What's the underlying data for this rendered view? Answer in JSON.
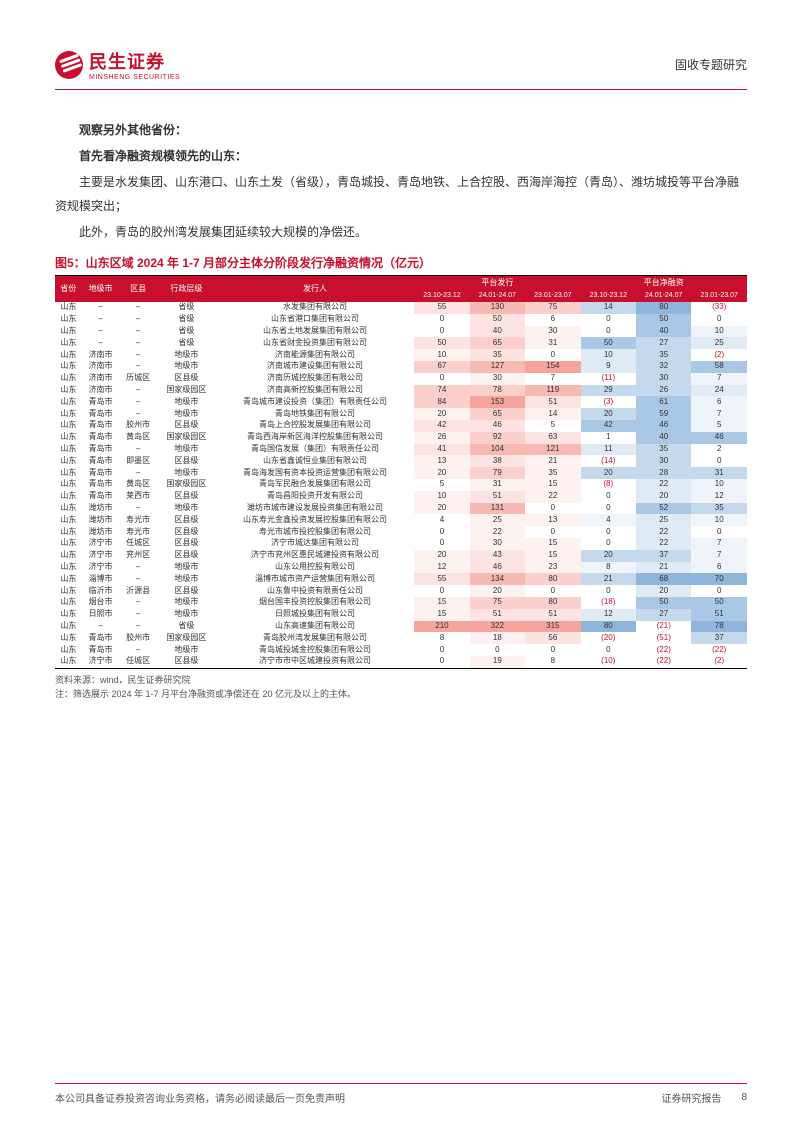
{
  "header": {
    "logo_cn": "民生证券",
    "logo_en": "MINSHENG SECURITIES",
    "right": "固收专题研究"
  },
  "body": {
    "p1": "观察另外其他省份：",
    "p2": "首先看净融资规模领先的山东：",
    "p3": "主要是水发集团、山东港口、山东土发（省级），青岛城投、青岛地铁、上合控股、西海岸海控（青岛）、潍坊城投等平台净融资规模突出；",
    "p4": "此外，青岛的胶州湾发展集团延续较大规模的净偿还。"
  },
  "table": {
    "title": "图5：山东区域 2024 年 1-7 月部分主体分阶段发行净融资情况（亿元）",
    "header_top": {
      "c1": "省份",
      "c2": "地级市",
      "c3": "区县",
      "c4": "行政层级",
      "c5": "发行人",
      "g1": "平台发行",
      "g2": "平台净融资"
    },
    "header_sub": {
      "s1": "23.10-23.12",
      "s2": "24.01-24.07",
      "s3": "23.01-23.07",
      "s4": "23.10-23.12",
      "s5": "24.01-24.07",
      "s6": "23.01-23.07"
    },
    "colors": {
      "red5": "#f7a49c",
      "red4": "#f9b9b3",
      "red3": "#fbcfcb",
      "red2": "#fde4e2",
      "red1": "#fef2f1",
      "blue5": "#8fb5dd",
      "blue4": "#aac7e5",
      "blue3": "#c5d9ed",
      "blue2": "#dfeaf5",
      "blue1": "#eff4fa",
      "white": "#ffffff",
      "neg": "#c8102e"
    },
    "rows": [
      {
        "p": "山东",
        "c": "–",
        "d": "–",
        "l": "省级",
        "i": "水发集团有限公司",
        "v": [
          55,
          130,
          75,
          14,
          80,
          "(33)"
        ],
        "bg": [
          "red2",
          "red4",
          "red3",
          "blue3",
          "blue5",
          "white"
        ],
        "nc": [
          0,
          0,
          0,
          0,
          0,
          1
        ]
      },
      {
        "p": "山东",
        "c": "–",
        "d": "–",
        "l": "省级",
        "i": "山东省港口集团有限公司",
        "v": [
          0,
          50,
          6,
          0,
          50,
          0
        ],
        "bg": [
          "white",
          "red2",
          "white",
          "white",
          "blue4",
          "white"
        ],
        "nc": [
          0,
          0,
          0,
          0,
          0,
          0
        ]
      },
      {
        "p": "山东",
        "c": "–",
        "d": "–",
        "l": "省级",
        "i": "山东省土地发展集团有限公司",
        "v": [
          0,
          40,
          30,
          0,
          40,
          10
        ],
        "bg": [
          "white",
          "red2",
          "red1",
          "white",
          "blue4",
          "blue1"
        ],
        "nc": [
          0,
          0,
          0,
          0,
          0,
          0
        ]
      },
      {
        "p": "山东",
        "c": "–",
        "d": "–",
        "l": "省级",
        "i": "山东省财金投资集团有限公司",
        "v": [
          50,
          65,
          31,
          50,
          27,
          25
        ],
        "bg": [
          "red2",
          "red3",
          "red1",
          "blue4",
          "blue3",
          "blue2"
        ],
        "nc": [
          0,
          0,
          0,
          0,
          0,
          0
        ]
      },
      {
        "p": "山东",
        "c": "济南市",
        "d": "–",
        "l": "地级市",
        "i": "济南能源集团有限公司",
        "v": [
          10,
          35,
          0,
          10,
          35,
          "(2)"
        ],
        "bg": [
          "red1",
          "red2",
          "white",
          "blue2",
          "blue3",
          "white"
        ],
        "nc": [
          0,
          0,
          0,
          0,
          0,
          1
        ]
      },
      {
        "p": "山东",
        "c": "济南市",
        "d": "–",
        "l": "地级市",
        "i": "济南城市建设集团有限公司",
        "v": [
          67,
          127,
          154,
          9,
          32,
          58
        ],
        "bg": [
          "red3",
          "red4",
          "red5",
          "blue2",
          "blue3",
          "blue4"
        ],
        "nc": [
          0,
          0,
          0,
          0,
          0,
          0
        ]
      },
      {
        "p": "山东",
        "c": "济南市",
        "d": "历城区",
        "l": "区县级",
        "i": "济南历城控股集团有限公司",
        "v": [
          0,
          30,
          7,
          "(11)",
          30,
          7
        ],
        "bg": [
          "white",
          "red1",
          "white",
          "white",
          "blue3",
          "blue1"
        ],
        "nc": [
          0,
          0,
          0,
          1,
          0,
          0
        ]
      },
      {
        "p": "山东",
        "c": "济南市",
        "d": "–",
        "l": "国家级园区",
        "i": "济南高新控股集团有限公司",
        "v": [
          74,
          78,
          119,
          29,
          26,
          24
        ],
        "bg": [
          "red3",
          "red3",
          "red4",
          "blue3",
          "blue3",
          "blue2"
        ],
        "nc": [
          0,
          0,
          0,
          0,
          0,
          0
        ]
      },
      {
        "p": "山东",
        "c": "青岛市",
        "d": "–",
        "l": "地级市",
        "i": "青岛城市建设投资（集团）有限责任公司",
        "v": [
          84,
          153,
          51,
          "(3)",
          61,
          6
        ],
        "bg": [
          "red3",
          "red5",
          "red2",
          "white",
          "blue4",
          "blue1"
        ],
        "nc": [
          0,
          0,
          0,
          1,
          0,
          0
        ]
      },
      {
        "p": "山东",
        "c": "青岛市",
        "d": "–",
        "l": "地级市",
        "i": "青岛地铁集团有限公司",
        "v": [
          20,
          65,
          14,
          20,
          59,
          7
        ],
        "bg": [
          "red1",
          "red3",
          "red1",
          "blue3",
          "blue4",
          "blue1"
        ],
        "nc": [
          0,
          0,
          0,
          0,
          0,
          0
        ]
      },
      {
        "p": "山东",
        "c": "青岛市",
        "d": "胶州市",
        "l": "区县级",
        "i": "青岛上合控股发展集团有限公司",
        "v": [
          42,
          46,
          5,
          42,
          46,
          5
        ],
        "bg": [
          "red2",
          "red2",
          "white",
          "blue4",
          "blue4",
          "blue1"
        ],
        "nc": [
          0,
          0,
          0,
          0,
          0,
          0
        ]
      },
      {
        "p": "山东",
        "c": "青岛市",
        "d": "黄岛区",
        "l": "国家级园区",
        "i": "青岛西海岸新区海洋控股集团有限公司",
        "v": [
          26,
          92,
          63,
          1,
          40,
          46
        ],
        "bg": [
          "red1",
          "red3",
          "red2",
          "white",
          "blue4",
          "blue4"
        ],
        "nc": [
          0,
          0,
          0,
          0,
          0,
          0
        ]
      },
      {
        "p": "山东",
        "c": "青岛市",
        "d": "–",
        "l": "地级市",
        "i": "青岛国信发展（集团）有限责任公司",
        "v": [
          41,
          104,
          121,
          11,
          35,
          2
        ],
        "bg": [
          "red2",
          "red4",
          "red4",
          "blue2",
          "blue3",
          "white"
        ],
        "nc": [
          0,
          0,
          0,
          0,
          0,
          0
        ]
      },
      {
        "p": "山东",
        "c": "青岛市",
        "d": "即墨区",
        "l": "区县级",
        "i": "山东省鑫诚恒业集团有限公司",
        "v": [
          13,
          38,
          21,
          "(14)",
          30,
          0
        ],
        "bg": [
          "red1",
          "red2",
          "red1",
          "white",
          "blue3",
          "white"
        ],
        "nc": [
          0,
          0,
          0,
          1,
          0,
          0
        ]
      },
      {
        "p": "山东",
        "c": "青岛市",
        "d": "–",
        "l": "地级市",
        "i": "青岛海发国有资本投资运营集团有限公司",
        "v": [
          20,
          79,
          35,
          20,
          28,
          31
        ],
        "bg": [
          "red1",
          "red3",
          "red1",
          "blue3",
          "blue3",
          "blue3"
        ],
        "nc": [
          0,
          0,
          0,
          0,
          0,
          0
        ]
      },
      {
        "p": "山东",
        "c": "青岛市",
        "d": "黄岛区",
        "l": "国家级园区",
        "i": "青岛军民融合发展集团有限公司",
        "v": [
          5,
          31,
          15,
          "(8)",
          22,
          10
        ],
        "bg": [
          "white",
          "red1",
          "red1",
          "white",
          "blue2",
          "blue1"
        ],
        "nc": [
          0,
          0,
          0,
          1,
          0,
          0
        ]
      },
      {
        "p": "山东",
        "c": "青岛市",
        "d": "莱西市",
        "l": "区县级",
        "i": "青岛昌阳投资开发有限公司",
        "v": [
          10,
          51,
          22,
          0,
          20,
          12
        ],
        "bg": [
          "red1",
          "red2",
          "red1",
          "white",
          "blue2",
          "blue1"
        ],
        "nc": [
          0,
          0,
          0,
          0,
          0,
          0
        ]
      },
      {
        "p": "山东",
        "c": "潍坊市",
        "d": "–",
        "l": "地级市",
        "i": "潍坊市城市建设发展投资集团有限公司",
        "v": [
          20,
          131,
          0,
          0,
          52,
          35
        ],
        "bg": [
          "red1",
          "red4",
          "white",
          "white",
          "blue4",
          "blue3"
        ],
        "nc": [
          0,
          0,
          0,
          0,
          0,
          0
        ]
      },
      {
        "p": "山东",
        "c": "潍坊市",
        "d": "寿光市",
        "l": "区县级",
        "i": "山东寿光金鑫投资发展控股集团有限公司",
        "v": [
          4,
          25,
          13,
          4,
          25,
          10
        ],
        "bg": [
          "white",
          "red1",
          "red1",
          "blue1",
          "blue2",
          "blue1"
        ],
        "nc": [
          0,
          0,
          0,
          0,
          0,
          0
        ]
      },
      {
        "p": "山东",
        "c": "潍坊市",
        "d": "寿光市",
        "l": "区县级",
        "i": "寿光市城市投控股集团有限公司",
        "v": [
          0,
          22,
          0,
          0,
          22,
          0
        ],
        "bg": [
          "white",
          "red1",
          "white",
          "white",
          "blue2",
          "white"
        ],
        "nc": [
          0,
          0,
          0,
          0,
          0,
          0
        ]
      },
      {
        "p": "山东",
        "c": "济宁市",
        "d": "任城区",
        "l": "区县级",
        "i": "济宁市城达集团有限公司",
        "v": [
          0,
          30,
          15,
          0,
          22,
          7
        ],
        "bg": [
          "white",
          "red1",
          "red1",
          "white",
          "blue2",
          "blue1"
        ],
        "nc": [
          0,
          0,
          0,
          0,
          0,
          0
        ]
      },
      {
        "p": "山东",
        "c": "济宁市",
        "d": "兖州区",
        "l": "区县级",
        "i": "济宁市兖州区惠民城建投资有限公司",
        "v": [
          20,
          43,
          15,
          20,
          37,
          7
        ],
        "bg": [
          "red1",
          "red2",
          "red1",
          "blue3",
          "blue3",
          "blue1"
        ],
        "nc": [
          0,
          0,
          0,
          0,
          0,
          0
        ]
      },
      {
        "p": "山东",
        "c": "济宁市",
        "d": "–",
        "l": "地级市",
        "i": "山东公用控股有限公司",
        "v": [
          12,
          46,
          23,
          8,
          21,
          6
        ],
        "bg": [
          "red1",
          "red2",
          "red1",
          "blue1",
          "blue2",
          "blue1"
        ],
        "nc": [
          0,
          0,
          0,
          0,
          0,
          0
        ]
      },
      {
        "p": "山东",
        "c": "淄博市",
        "d": "–",
        "l": "地级市",
        "i": "淄博市城市资产运营集团有限公司",
        "v": [
          55,
          134,
          80,
          21,
          68,
          70
        ],
        "bg": [
          "red2",
          "red4",
          "red3",
          "blue3",
          "blue5",
          "blue5"
        ],
        "nc": [
          0,
          0,
          0,
          0,
          0,
          0
        ]
      },
      {
        "p": "山东",
        "c": "临沂市",
        "d": "沂源县",
        "l": "区县级",
        "i": "山东鲁中投资有限责任公司",
        "v": [
          0,
          20,
          0,
          0,
          20,
          0
        ],
        "bg": [
          "white",
          "red1",
          "white",
          "white",
          "blue2",
          "white"
        ],
        "nc": [
          0,
          0,
          0,
          0,
          0,
          0
        ]
      },
      {
        "p": "山东",
        "c": "烟台市",
        "d": "–",
        "l": "地级市",
        "i": "烟台国丰投资控股集团有限公司",
        "v": [
          15,
          75,
          80,
          "(18)",
          50,
          50
        ],
        "bg": [
          "red1",
          "red3",
          "red3",
          "white",
          "blue4",
          "blue4"
        ],
        "nc": [
          0,
          0,
          0,
          1,
          0,
          0
        ]
      },
      {
        "p": "山东",
        "c": "日照市",
        "d": "–",
        "l": "地级市",
        "i": "日照城投集团有限公司",
        "v": [
          15,
          51,
          51,
          12,
          27,
          51
        ],
        "bg": [
          "red1",
          "red2",
          "red2",
          "blue2",
          "blue3",
          "blue4"
        ],
        "nc": [
          0,
          0,
          0,
          0,
          0,
          0
        ]
      },
      {
        "p": "山东",
        "c": "–",
        "d": "–",
        "l": "省级",
        "i": "山东高速集团有限公司",
        "v": [
          210,
          322,
          315,
          80,
          "(21)",
          78
        ],
        "bg": [
          "red5",
          "red5",
          "red5",
          "blue5",
          "white",
          "blue5"
        ],
        "nc": [
          0,
          0,
          0,
          0,
          1,
          0
        ]
      },
      {
        "p": "山东",
        "c": "青岛市",
        "d": "胶州市",
        "l": "国家级园区",
        "i": "青岛胶州湾发展集团有限公司",
        "v": [
          8,
          18,
          56,
          "(20)",
          "(51)",
          37
        ],
        "bg": [
          "white",
          "red1",
          "red2",
          "white",
          "white",
          "blue3"
        ],
        "nc": [
          0,
          0,
          0,
          1,
          1,
          0
        ]
      },
      {
        "p": "山东",
        "c": "青岛市",
        "d": "–",
        "l": "地级市",
        "i": "青岛城投城金控股集团有限公司",
        "v": [
          0,
          0,
          0,
          0,
          "(22)",
          "(22)"
        ],
        "bg": [
          "white",
          "white",
          "white",
          "white",
          "white",
          "white"
        ],
        "nc": [
          0,
          0,
          0,
          0,
          1,
          1
        ]
      },
      {
        "p": "山东",
        "c": "济宁市",
        "d": "任城区",
        "l": "区县级",
        "i": "济宁市市中区城建投资有限公司",
        "v": [
          0,
          19,
          8,
          "(10)",
          "(22)",
          "(2)"
        ],
        "bg": [
          "white",
          "red1",
          "white",
          "white",
          "white",
          "white"
        ],
        "nc": [
          0,
          0,
          0,
          1,
          1,
          1
        ]
      }
    ],
    "source": "资料来源：wind，民生证券研究院",
    "note": "注：筛选展示 2024 年 1-7 月平台净融资或净偿还在 20 亿元及以上的主体。"
  },
  "footer": {
    "left": "本公司具备证券投资咨询业务资格，请务必阅读最后一页免责声明",
    "right": "证券研究报告",
    "page": "8"
  }
}
